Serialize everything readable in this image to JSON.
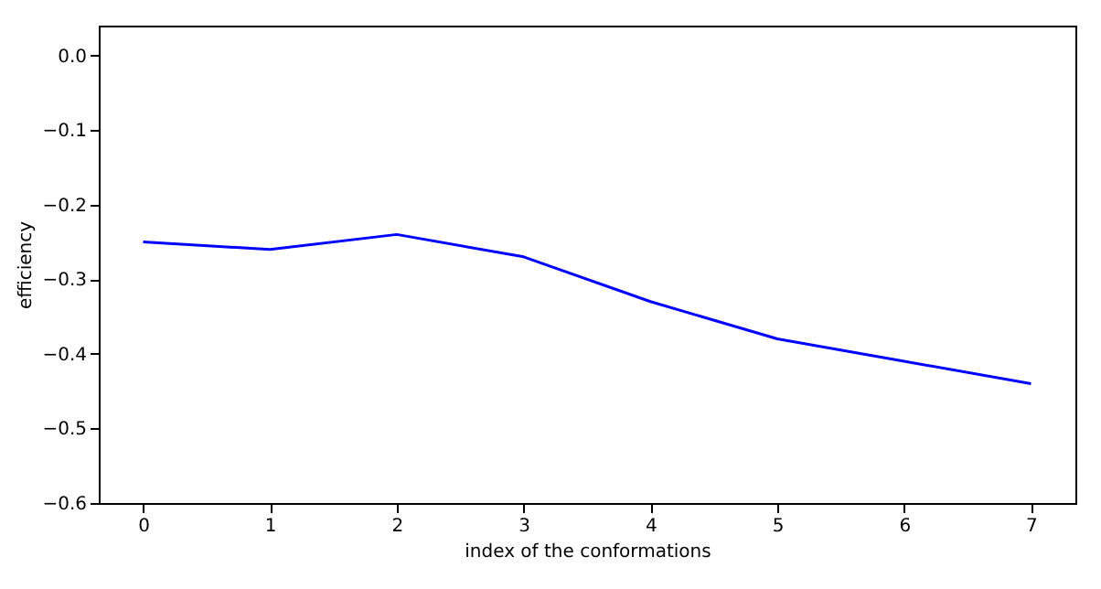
{
  "chart_data": {
    "type": "line",
    "xlabel": "index of the conformations",
    "ylabel": "efficiency",
    "x": [
      0,
      1,
      2,
      3,
      4,
      5,
      6,
      7
    ],
    "series": [
      {
        "color": "#0000ff",
        "values": [
          -0.25,
          -0.26,
          -0.24,
          -0.27,
          -0.33,
          -0.38,
          -0.41,
          -0.44
        ]
      }
    ],
    "xlim": [
      -0.35,
      7.35
    ],
    "xticks": [
      0,
      1,
      2,
      3,
      4,
      5,
      6,
      7
    ],
    "ylim": [
      -0.6,
      0.04
    ],
    "yticks": [
      -0.6,
      -0.5,
      -0.4,
      -0.3,
      -0.2,
      -0.1,
      {
        "value": 0,
        "label": "0.0"
      }
    ],
    "grid": false
  }
}
